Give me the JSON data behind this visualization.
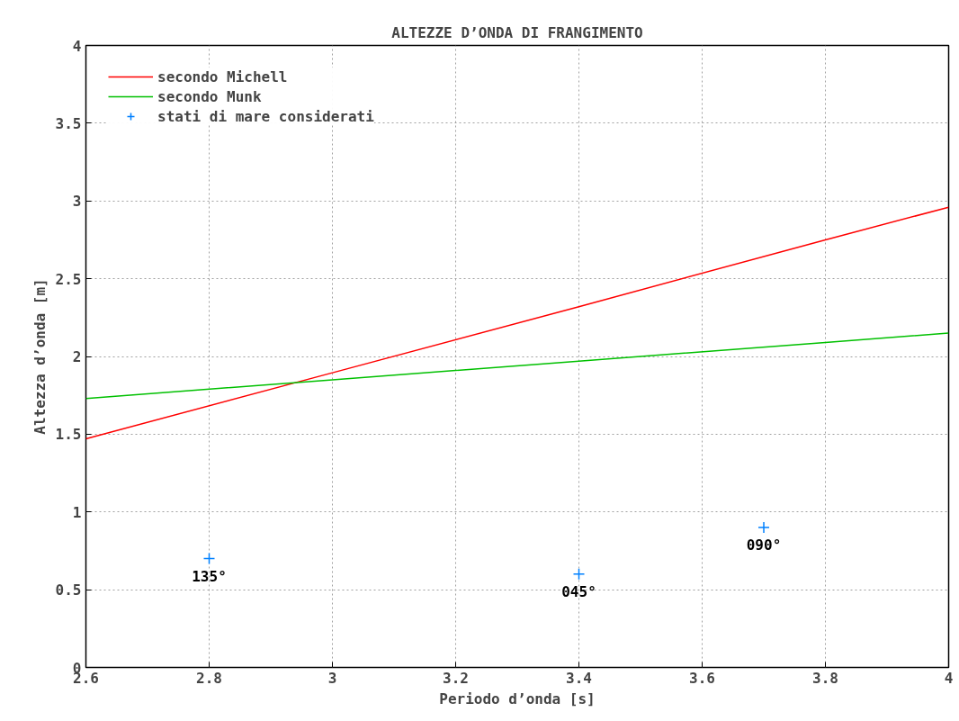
{
  "chart_data": {
    "type": "line",
    "title": "ALTEZZE D’ONDA DI FRANGIMENTO",
    "xlabel": "Periodo d’onda [s]",
    "ylabel": "Altezza d’onda [m]",
    "xlim": [
      2.6,
      4
    ],
    "ylim": [
      0,
      4
    ],
    "xticks": [
      2.6,
      2.8,
      3,
      3.2,
      3.4,
      3.6,
      3.8,
      4
    ],
    "yticks": [
      0,
      0.5,
      1,
      1.5,
      2,
      2.5,
      3,
      3.5,
      4
    ],
    "grid": true,
    "legend": "top left",
    "series": [
      {
        "name": "secondo Michell",
        "color": "#ff0000",
        "x": [
          2.6,
          3.0,
          3.4,
          3.8,
          4.0
        ],
        "values": [
          1.47,
          1.895,
          2.32,
          2.75,
          2.96
        ]
      },
      {
        "name": "secondo Munk",
        "color": "#00c000",
        "x": [
          2.6,
          3.0,
          3.4,
          3.8,
          4.0
        ],
        "values": [
          1.73,
          1.85,
          1.97,
          2.09,
          2.15
        ]
      },
      {
        "name": "stati di mare considerati",
        "type": "scatter",
        "marker": "cross",
        "color": "#0080ff",
        "x": [
          2.8,
          3.4,
          3.7
        ],
        "values": [
          0.7,
          0.6,
          0.9
        ]
      }
    ],
    "annotations": [
      {
        "text": "135°",
        "x": 2.8,
        "y": 0.7
      },
      {
        "text": "045°",
        "x": 3.4,
        "y": 0.6
      },
      {
        "text": "090°",
        "x": 3.7,
        "y": 0.9
      }
    ]
  }
}
